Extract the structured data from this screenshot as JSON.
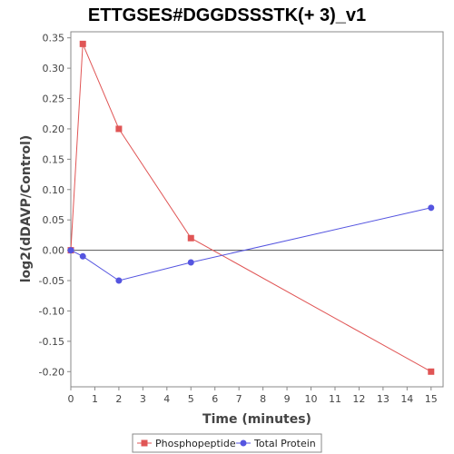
{
  "chart_data": {
    "type": "line",
    "title": "ETTGSES#DGGDSSSTK(+ 3)_v1",
    "xlabel": "Time (minutes)",
    "ylabel": "log2(dDAVP/Control)",
    "xlim": [
      0,
      15.5
    ],
    "ylim": [
      -0.225,
      0.36
    ],
    "xticks": [
      0,
      1,
      2,
      3,
      4,
      5,
      6,
      7,
      8,
      9,
      10,
      11,
      12,
      13,
      14,
      15
    ],
    "yticks": [
      -0.2,
      -0.15,
      -0.1,
      -0.05,
      0.0,
      0.05,
      0.1,
      0.15,
      0.2,
      0.25,
      0.3,
      0.35
    ],
    "ytick_labels": [
      "-0.20",
      "-0.15",
      "-0.10",
      "-0.05",
      "0.00",
      "0.05",
      "0.10",
      "0.15",
      "0.20",
      "0.25",
      "0.30",
      "0.35"
    ],
    "grid": false,
    "zero_line": true,
    "legend": "bottom-center",
    "series": [
      {
        "name": "Phosphopeptide",
        "color": "#e05555",
        "marker": "square",
        "x": [
          0,
          0.5,
          2,
          5,
          15
        ],
        "y": [
          0.0,
          0.34,
          0.2,
          0.02,
          -0.2
        ]
      },
      {
        "name": "Total Protein",
        "color": "#5555e0",
        "marker": "circle",
        "x": [
          0,
          0.5,
          2,
          5,
          15
        ],
        "y": [
          0.0,
          -0.01,
          -0.05,
          -0.02,
          0.07
        ]
      }
    ]
  }
}
